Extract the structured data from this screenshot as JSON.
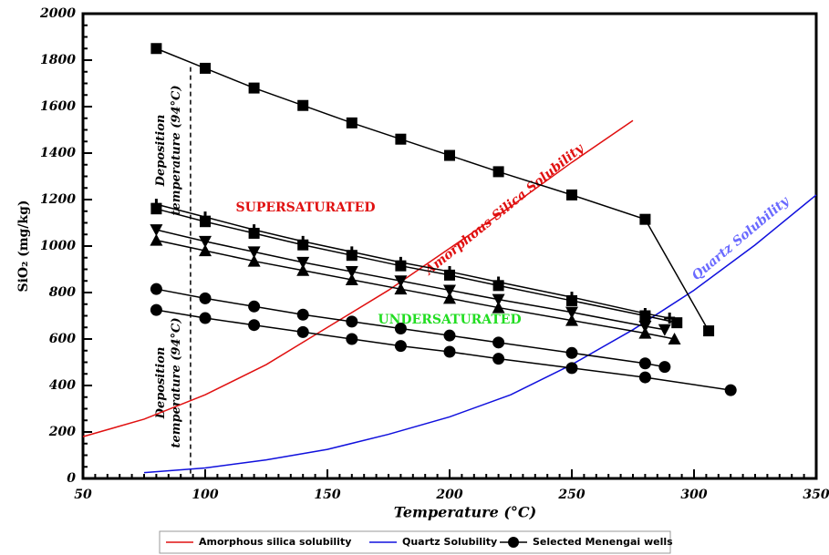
{
  "chart_data": {
    "type": "line",
    "xlabel": "Temperature (°C)",
    "ylabel": "SiO₂ (mg/kg)",
    "xlim": [
      50,
      350
    ],
    "ylim": [
      0,
      2000
    ],
    "xticks": [
      50,
      100,
      150,
      200,
      250,
      300,
      350
    ],
    "yticks": [
      0,
      200,
      400,
      600,
      800,
      1000,
      1200,
      1400,
      1600,
      1800,
      2000
    ],
    "xminor": 5,
    "yminor": 50,
    "vline": 94,
    "annotations": [
      {
        "text": [
          "Deposition",
          "temperature (94°C)"
        ],
        "color": "#000000"
      },
      {
        "text": [
          "Deposition",
          "temperature (94°C)"
        ],
        "color": "#000000"
      },
      {
        "text": [
          "SUPERSATURATED"
        ],
        "color": "#e01010"
      },
      {
        "text": [
          "UNDERSATURATED"
        ],
        "color": "#22dd22"
      },
      {
        "text": [
          "Amorphous Silica Solubility"
        ],
        "color": "#e01010"
      },
      {
        "text": [
          "Quartz Solubility"
        ],
        "color": "#6a6aff"
      }
    ],
    "series": [
      {
        "name": "Amorphous silica solubility",
        "color": "#e01010",
        "marker": "none",
        "x": [
          50,
          75,
          100,
          125,
          150,
          175,
          200,
          225,
          250,
          275
        ],
        "values": [
          180,
          255,
          360,
          490,
          650,
          810,
          990,
          1170,
          1360,
          1540
        ]
      },
      {
        "name": "Quartz Solubility",
        "color": "#1010dd",
        "marker": "none",
        "x": [
          75,
          100,
          125,
          150,
          175,
          200,
          225,
          250,
          275,
          300,
          325,
          350
        ],
        "values": [
          25,
          45,
          80,
          125,
          190,
          265,
          360,
          490,
          640,
          810,
          1005,
          1220
        ]
      },
      {
        "color": "#000000",
        "marker": "square",
        "x": [
          80,
          100,
          120,
          140,
          160,
          180,
          200,
          220,
          250,
          280,
          306
        ],
        "values": [
          1850,
          1765,
          1680,
          1605,
          1530,
          1460,
          1390,
          1320,
          1220,
          1115,
          635
        ]
      },
      {
        "color": "#000000",
        "marker": "plus",
        "x": [
          80,
          100,
          120,
          140,
          160,
          180,
          200,
          220,
          250,
          280,
          290
        ],
        "values": [
          1180,
          1125,
          1070,
          1020,
          975,
          930,
          890,
          845,
          780,
          710,
          690
        ]
      },
      {
        "color": "#000000",
        "marker": "square",
        "x": [
          80,
          100,
          120,
          140,
          160,
          180,
          200,
          220,
          250,
          280,
          293
        ],
        "values": [
          1160,
          1105,
          1055,
          1005,
          960,
          915,
          875,
          830,
          765,
          700,
          670
        ]
      },
      {
        "color": "#000000",
        "marker": "triangle-down",
        "x": [
          80,
          100,
          120,
          140,
          160,
          180,
          200,
          220,
          250,
          280,
          288
        ],
        "values": [
          1070,
          1020,
          975,
          930,
          890,
          850,
          810,
          770,
          715,
          655,
          640
        ]
      },
      {
        "color": "#000000",
        "marker": "triangle-up",
        "x": [
          80,
          100,
          120,
          140,
          160,
          180,
          200,
          220,
          250,
          280,
          292
        ],
        "values": [
          1025,
          980,
          935,
          895,
          855,
          815,
          775,
          735,
          680,
          625,
          600
        ]
      },
      {
        "color": "#000000",
        "marker": "circle",
        "x": [
          80,
          100,
          120,
          140,
          160,
          180,
          200,
          220,
          250,
          280,
          288
        ],
        "values": [
          815,
          775,
          740,
          705,
          675,
          645,
          615,
          585,
          540,
          495,
          480
        ]
      },
      {
        "name": "Selected Menengai wells",
        "color": "#000000",
        "marker": "circle",
        "x": [
          80,
          100,
          120,
          140,
          160,
          180,
          200,
          220,
          250,
          280,
          315
        ],
        "values": [
          725,
          690,
          660,
          630,
          600,
          570,
          545,
          515,
          475,
          435,
          380
        ]
      }
    ]
  }
}
